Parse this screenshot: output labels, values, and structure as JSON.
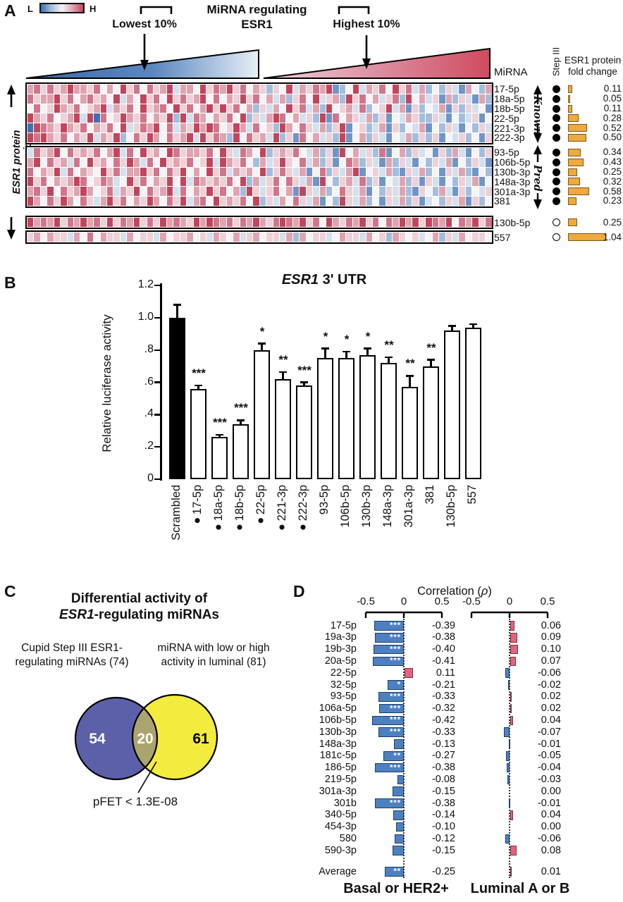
{
  "figure": {
    "panels": {
      "a": "A",
      "b": "B",
      "c": "C",
      "d": "D"
    }
  },
  "chart_data": [
    {
      "panel": "A",
      "type": "heatmap",
      "title_line1": "MiRNA regulating",
      "title_line2": "ESR1",
      "colorbar": {
        "low": "L",
        "high": "H"
      },
      "annotations": {
        "lowest": "Lowest 10%",
        "highest": "Highest 10%",
        "left_axis": "ESR1 protein expression"
      },
      "headers": {
        "mirna": "MiRNA",
        "step": "Step III",
        "fold_line1": "ESR1 protein",
        "fold_line2": "fold change"
      },
      "groups": [
        {
          "label": "Known"
        },
        {
          "label": "Pred"
        }
      ],
      "rows": [
        {
          "mirna": "17-5p",
          "group": "known",
          "step3_filled": true,
          "fold_change": 0.11
        },
        {
          "mirna": "18a-5p",
          "group": "known",
          "step3_filled": true,
          "fold_change": 0.05
        },
        {
          "mirna": "18b-5p",
          "group": "known",
          "step3_filled": true,
          "fold_change": 0.11
        },
        {
          "mirna": "22-5p",
          "group": "known",
          "step3_filled": true,
          "fold_change": 0.28
        },
        {
          "mirna": "221-3p",
          "group": "known",
          "step3_filled": true,
          "fold_change": 0.52
        },
        {
          "mirna": "222-3p",
          "group": "known",
          "step3_filled": true,
          "fold_change": 0.5
        },
        {
          "mirna": "93-5p",
          "group": "pred",
          "step3_filled": true,
          "fold_change": 0.34
        },
        {
          "mirna": "106b-5p",
          "group": "pred",
          "step3_filled": true,
          "fold_change": 0.43
        },
        {
          "mirna": "130b-3p",
          "group": "pred",
          "step3_filled": true,
          "fold_change": 0.25
        },
        {
          "mirna": "148a-3p",
          "group": "pred",
          "step3_filled": true,
          "fold_change": 0.32
        },
        {
          "mirna": "301a-3p",
          "group": "pred",
          "step3_filled": true,
          "fold_change": 0.58
        },
        {
          "mirna": "381",
          "group": "pred",
          "step3_filled": true,
          "fold_change": 0.23
        },
        {
          "mirna": "130b-5p",
          "group": "other",
          "step3_filled": false,
          "fold_change": 0.25
        },
        {
          "mirna": "557",
          "group": "other",
          "step3_filled": false,
          "fold_change": 1.04
        }
      ],
      "palette": [
        "#3f6fb0",
        "#6e95c8",
        "#a3bedd",
        "#d3e0ee",
        "#f5f3f5",
        "#eed0d7",
        "#e0a4b0",
        "#d1758a",
        "#c2455c"
      ],
      "cells": [
        "6757568665746485747568366485768574652548365768124836574857362425316426",
        "7566857467564836485748575684746585746362574835628574635728463516253162",
        "4745865745683657485674857468585746253648573628456372458361524361525341",
        "8657456838074586574658283764657482536874635281746536251436522531423514",
        "0876586574657483576847365868745863745286475362581452361524361425314253",
        "8786574658365824758647568385762847563825174635281462531436252514352415",
        "3756847565746837485648756657485376482565743625184635271462534152631425",
        "6847563748564758637485657458386574263585473625147625316253142536142531",
        "7465837465485736685747584648573656482575361472536814536215362415362142",
        "8574656874576348574658483765657482635747536184256372514362515314253614",
        "6758475686457365847568374658574628535746185362475361425362154263152435",
        "8647586475368574658647583674856574825364753614285362415362513425361524",
        "8676857686758576857586765868767576865787685748657685747686858768476857",
        "5646553647465536455364556453654635645536264553465536452654534625364554"
      ],
      "wedge_colors": {
        "blue_dark": "#3c66a8",
        "blue_light": "#e7eef7",
        "red_light": "#ecd5de",
        "red_dark": "#cf4a60"
      },
      "fold_bar_color": "#efa93c"
    },
    {
      "panel": "B",
      "type": "bar",
      "title_italic": "ESR1",
      "title_rest": " 3' UTR",
      "ylabel": "Relative luciferase activity",
      "ylim": [
        0,
        1.2
      ],
      "yticks": [
        {
          "v": 0,
          "label": "0"
        },
        {
          "v": 0.2,
          "label": ".2"
        },
        {
          "v": 0.4,
          "label": ".4"
        },
        {
          "v": 0.6,
          "label": ".6"
        },
        {
          "v": 0.8,
          "label": ".8"
        },
        {
          "v": 1.0,
          "label": "1.0"
        },
        {
          "v": 1.2,
          "label": "1.2"
        }
      ],
      "bars": [
        {
          "label": "Scrambled",
          "bullet": false,
          "value": 1.0,
          "err": 0.08,
          "sig": "",
          "black": true
        },
        {
          "label": "17-5p",
          "bullet": true,
          "value": 0.56,
          "err": 0.02,
          "sig": "***",
          "black": false
        },
        {
          "label": "18a-5p",
          "bullet": true,
          "value": 0.26,
          "err": 0.015,
          "sig": "***",
          "black": false
        },
        {
          "label": "18b-5p",
          "bullet": true,
          "value": 0.34,
          "err": 0.025,
          "sig": "***",
          "black": false
        },
        {
          "label": "22-5p",
          "bullet": true,
          "value": 0.8,
          "err": 0.04,
          "sig": "*",
          "black": false
        },
        {
          "label": "221-3p",
          "bullet": true,
          "value": 0.62,
          "err": 0.045,
          "sig": "**",
          "black": false
        },
        {
          "label": "222-3p",
          "bullet": true,
          "value": 0.58,
          "err": 0.02,
          "sig": "***",
          "black": false
        },
        {
          "label": "93-5p",
          "bullet": false,
          "value": 0.75,
          "err": 0.06,
          "sig": "*",
          "black": false
        },
        {
          "label": "106b-5p",
          "bullet": false,
          "value": 0.75,
          "err": 0.04,
          "sig": "*",
          "black": false
        },
        {
          "label": "130b-3p",
          "bullet": false,
          "value": 0.77,
          "err": 0.04,
          "sig": "*",
          "black": false
        },
        {
          "label": "148a-3p",
          "bullet": false,
          "value": 0.72,
          "err": 0.035,
          "sig": "**",
          "black": false
        },
        {
          "label": "301a-3p",
          "bullet": false,
          "value": 0.57,
          "err": 0.07,
          "sig": "**",
          "black": false
        },
        {
          "label": "381",
          "bullet": false,
          "value": 0.7,
          "err": 0.04,
          "sig": "**",
          "black": false
        },
        {
          "label": "130b-5p",
          "bullet": false,
          "value": 0.92,
          "err": 0.03,
          "sig": "",
          "black": false
        },
        {
          "label": "557",
          "bullet": false,
          "value": 0.94,
          "err": 0.02,
          "sig": "",
          "black": false
        }
      ]
    },
    {
      "panel": "C",
      "type": "venn",
      "title_line1": "Differential activity of",
      "title_line2_italic": "ESR1",
      "title_line2_rest": "-regulating miRNAs",
      "left": {
        "label_line1": "Cupid Step III ESR1-",
        "label_line2": "regulating miRNAs (74)",
        "only": 54,
        "color": "#5c60a8"
      },
      "right": {
        "label_line1": "miRNA with low or high",
        "label_line2": "activity in luminal (81)",
        "only": 61,
        "color": "#f3eb3e"
      },
      "overlap": {
        "count": 20,
        "color": "#aba46f"
      },
      "note": "pFET < 1.3E-08"
    },
    {
      "panel": "D",
      "type": "hbar",
      "title_prefix": "Correlation (",
      "title_rho": "ρ",
      "title_suffix": ")",
      "axis_ticks": [
        "-0.5",
        "0",
        "0.5"
      ],
      "series": [
        {
          "name": "Basal or HER2+"
        },
        {
          "name": "Luminal A or B"
        }
      ],
      "colors": {
        "negative": "#4d80c0",
        "negative_border": "#1d3f66",
        "positive": "#e2647c",
        "positive_border": "#7c2f3f"
      },
      "rows": [
        {
          "mirna": "17-5p",
          "basal": -0.39,
          "basal_sig": "***",
          "luminal": 0.06,
          "luminal_sig": ""
        },
        {
          "mirna": "19a-3p",
          "basal": -0.38,
          "basal_sig": "***",
          "luminal": 0.09,
          "luminal_sig": ""
        },
        {
          "mirna": "19b-3p",
          "basal": -0.4,
          "basal_sig": "***",
          "luminal": 0.1,
          "luminal_sig": ""
        },
        {
          "mirna": "20a-5p",
          "basal": -0.41,
          "basal_sig": "***",
          "luminal": 0.07,
          "luminal_sig": ""
        },
        {
          "mirna": "22-5p",
          "basal": 0.11,
          "basal_sig": "",
          "luminal": -0.06,
          "luminal_sig": ""
        },
        {
          "mirna": "32-5p",
          "basal": -0.21,
          "basal_sig": "*",
          "luminal": -0.02,
          "luminal_sig": ""
        },
        {
          "mirna": "93-5p",
          "basal": -0.33,
          "basal_sig": "***",
          "luminal": 0.02,
          "luminal_sig": ""
        },
        {
          "mirna": "106a-5p",
          "basal": -0.32,
          "basal_sig": "***",
          "luminal": 0.02,
          "luminal_sig": ""
        },
        {
          "mirna": "106b-5p",
          "basal": -0.42,
          "basal_sig": "***",
          "luminal": 0.04,
          "luminal_sig": ""
        },
        {
          "mirna": "130b-3p",
          "basal": -0.33,
          "basal_sig": "***",
          "luminal": -0.07,
          "luminal_sig": ""
        },
        {
          "mirna": "148a-3p",
          "basal": -0.13,
          "basal_sig": "",
          "luminal": -0.01,
          "luminal_sig": ""
        },
        {
          "mirna": "181c-5p",
          "basal": -0.27,
          "basal_sig": "**",
          "luminal": -0.05,
          "luminal_sig": ""
        },
        {
          "mirna": "186-5p",
          "basal": -0.38,
          "basal_sig": "***",
          "luminal": -0.04,
          "luminal_sig": ""
        },
        {
          "mirna": "219-5p",
          "basal": -0.08,
          "basal_sig": "",
          "luminal": -0.03,
          "luminal_sig": ""
        },
        {
          "mirna": "301a-3p",
          "basal": -0.15,
          "basal_sig": "",
          "luminal": 0.0,
          "luminal_sig": ""
        },
        {
          "mirna": "301b",
          "basal": -0.38,
          "basal_sig": "***",
          "luminal": -0.01,
          "luminal_sig": ""
        },
        {
          "mirna": "340-5p",
          "basal": -0.14,
          "basal_sig": "",
          "luminal": 0.04,
          "luminal_sig": ""
        },
        {
          "mirna": "454-3p",
          "basal": -0.1,
          "basal_sig": "",
          "luminal": 0.0,
          "luminal_sig": ""
        },
        {
          "mirna": "580",
          "basal": -0.12,
          "basal_sig": "",
          "luminal": -0.06,
          "luminal_sig": ""
        },
        {
          "mirna": "590-3p",
          "basal": -0.15,
          "basal_sig": "",
          "luminal": 0.08,
          "luminal_sig": ""
        }
      ],
      "average": {
        "mirna": "Average",
        "basal": -0.25,
        "basal_sig": "**",
        "luminal": 0.01,
        "luminal_sig": ""
      }
    }
  ]
}
